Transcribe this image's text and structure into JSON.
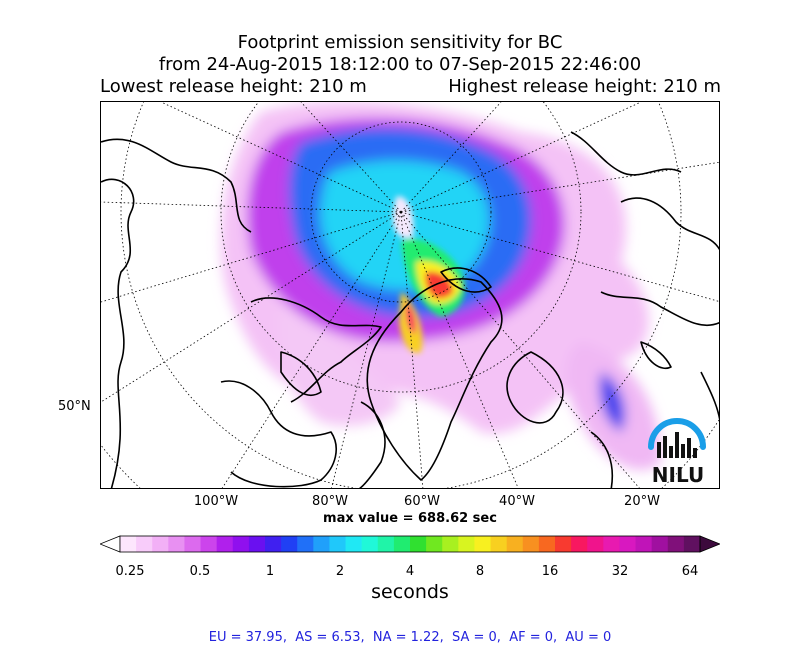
{
  "title": {
    "line1": "Footprint emission sensitivity for BC",
    "line2": "from 24-Aug-2015 18:12:00 to 07-Sep-2015 22:46:00",
    "lowest_release": "Lowest release height: 210 m",
    "highest_release": "Highest release height: 210 m"
  },
  "map": {
    "lon_labels": [
      "100°W",
      "80°W",
      "60°W",
      "40°W",
      "20°W"
    ],
    "lat_labels": [
      "50°N"
    ],
    "logo_text": "NILU",
    "max_value_text": "max value = 688.62 sec"
  },
  "colorbar": {
    "tick_labels": [
      "0.25",
      "0.5",
      "1",
      "2",
      "4",
      "8",
      "16",
      "32",
      "64"
    ],
    "unit_label": "seconds",
    "colors": [
      "#fde6fd",
      "#f8ccfa",
      "#f2b0f6",
      "#e890f2",
      "#dc6aee",
      "#cc44ec",
      "#b020ec",
      "#9010ee",
      "#6a10f0",
      "#4020f0",
      "#2040f4",
      "#2070f8",
      "#20a0fa",
      "#20c8fa",
      "#20e8f4",
      "#20f8d8",
      "#20f4a8",
      "#20ec70",
      "#30e030",
      "#70e820",
      "#a8f020",
      "#d8f420",
      "#f8f020",
      "#f8d020",
      "#f8b020",
      "#f89020",
      "#f86820",
      "#f83a30",
      "#f81860",
      "#f0148c",
      "#e81ab0",
      "#d818c0",
      "#c014b8",
      "#a010a0",
      "#80107a",
      "#601060"
    ]
  },
  "footer": "EU = 37.95,  AS = 6.53,  NA = 1.22,  SA = 0,  AF = 0,  AU = 0"
}
